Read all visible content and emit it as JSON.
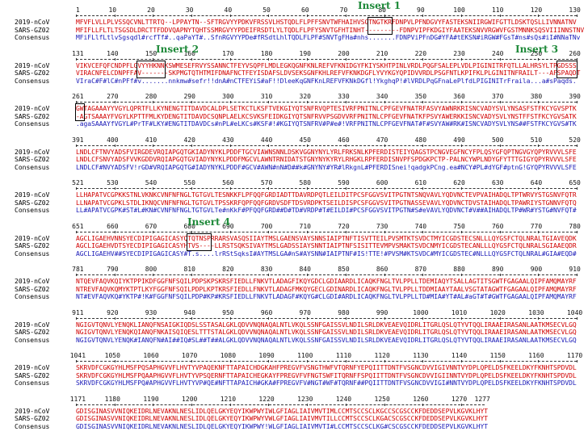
{
  "row_labels": [
    "2019-nCoV",
    "SARS-GZ02",
    "Consensus"
  ],
  "inserts": [
    "Insert 1",
    "Insert 2",
    "Insert 3",
    "Insert 4"
  ],
  "blocks": [
    {
      "ruler": [
        "1",
        "10",
        "20",
        "30",
        "40",
        "50",
        "60",
        "70",
        "80",
        "90",
        "100",
        "110",
        "120",
        "130"
      ],
      "seqs": [
        "MFVFLVLLPLVSSQCVNLTTRTQ--LPPAYTN--SFTRGVYYPDKVFRSSVLHSTQDLFLPFFSNVTWFHAIHVSGTNGTKRFDNPVLPFNDGVYFASTEKSNIIRGWIFGTTLDSKTQSLLIVNNATNV",
        "MFIFLLFLTLTSGSDLDRCTTFDDVQAPNYTQHTSSMRGVYYPDEIFRSDTLYLTQDLFLPFYSNVTGFHTINHT---------FDNPVIPFKDGIYFAATEKSNVVRGWVFGSTMNNKSQSVIIINNSTNV",
        "MFiFLlfLtlvSgsqdl#rcfTf#..qaPaYT#..SfnRGVYYPDe#fRSdtLhlTQDLFLPF#SNVTgFHa#nhs.......FDNPViPFnDG#YFA#tEKSN#iRGW#FGsT#ns#sQs#iI#NNaTNv"
      ],
      "inserts": [
        0
      ]
    },
    {
      "ruler": [
        "131",
        "140",
        "150",
        "160",
        "170",
        "180",
        "190",
        "200",
        "210",
        "220",
        "230",
        "240",
        "250",
        "260"
      ],
      "seqs": [
        "VIKVCEFQFCNDPFLGVYYHKNNKSWMESEFRVYSSANNCTFEYVSQPFLMDLEGKQGNFKNLREFVFKNIDGYFKIYSKHTPINLVRDLPQGFSALEPLVDLPIGINITRFQTLLALHRSYLTPGDSSS",
        "VIRACNFELCDNPFFAV-------SKPMGTQTHTMIFDNAFNCTFEYISDAFSLDVSEKSGNFKHLREFVFKNKDGFLYVYKGYQPIDVVRDLPSGFNTLKPIFKLPLGINITNFRAILT---AFSPAQDT",
        "VIraC#F#lC#nPFf#v.......nnkmw#sefr!!dnA#nCTFEYiS#aF!!DleeKqGNFKnLREFVFKNkDGfl!YkghqP!#lVRDLPqGFnaLePlfdLPIGINITrFraila...a#sPaqds."
      ],
      "inserts": [
        1,
        2
      ]
    },
    {
      "ruler": [
        "261",
        "270",
        "280",
        "290",
        "300",
        "310",
        "320",
        "330",
        "340",
        "350",
        "360",
        "370",
        "380",
        "390"
      ],
      "seqs": [
        "GWTAGAAAYYVGYLQPRTFLLKYNENGTITDAVDCALDPLSETKCTLKSFTVEKGIYQTSNFRVQPTESIVRFPNITNLCPFGEVFNATRFASVYAWNRKRISNCVADYSVLYNSASFSTFKCYGVSPTK",
        "-AGTSAAAYFVGYLKPTTFMLKYDENGTITDAVDCSQNPLAELKCSVKSFEIDKGIYQTSNFRVVPSGDVVRFPNITNLCPFGEVFNATKFPSVYAWERKKISNCVADYSVLYNSTFFSTFKCYGVSATK",
        ".agaSAAAYfVGYL#PrTF#LKY#ENGTITDAVDCs#nPL#eLKCs#KSF#!#KGIYQTSNFRV#P#e#!VRFPNITNLCPFGEVFNAT#F#SVYAW#RK#ISNCVADYSVLYNS##FSTFKCYGVS#TK"
      ],
      "inserts": [
        2
      ]
    },
    {
      "ruler": [
        "391",
        "400",
        "410",
        "420",
        "430",
        "440",
        "450",
        "460",
        "470",
        "480",
        "490",
        "500",
        "510",
        "520"
      ],
      "seqs": [
        "LNDLCFTNVYADSFVIRGDEVRQIAPGQTGKIADYNYKLPDDFTGCVIAWNSNNLDSKVGGNYNYLYRLFRKSNLKPFERDISTEIYQAGSTPCNGVEGFNCYFPLQSYGFQPTNGVGYQPYRVVVLSFE",
        "LNDLCFSNVYADSFVVKGDDVRQIAPGQTGVIADYNYKLPDDFMGCVLAWNTRNIDATSTGNYNYKYRYLRHGKLRPFERDISNVPFSPDGKPCTP-PALNCYWPLNDYGFYTTTGIGYQPYRVVVLSFE",
        "LNDLCF#NVYADSFV!rGD#VRQIAPGQTG#IADYNYKLPDDF#GCV#AWN#nN#D##k#GNYNY#YR#lRkgnL#PFERDISnei!qadgkPCng.ea#NCY#PL#dYGF#ptnG!GYQPYRVVVLSFE"
      ],
      "inserts": []
    },
    {
      "ruler": [
        "521",
        "530",
        "540",
        "550",
        "560",
        "570",
        "580",
        "590",
        "600",
        "610",
        "620",
        "630",
        "640",
        "650"
      ],
      "seqs": [
        "LLHAPATVCGPKKSTNLVKNKCVNFNFNGLTGTGVLTESNKKFLPFQQFGRDIADTTDAVRDPQTLEILDITPCSFGGVSVITPGTNTSNQVAVLYQDVNCTEVPVAIHADQLTPTWRVYSTGSNVFQTR",
        "LLNAPATVCGPKLSTDLIKNQCVNFNFNGLTGTGVLTPSSKRFQPFQQFGRDVSDFTDSVRDPKTSEILDISPCSFGGVSVITPGTNASSEVAVLYQDVNCTDVSTAIHADQLTPAWRIYSTGNNVFQTQ",
        "LL#APATVCGPK#ST#L#KN#CVNFNFNGLTGTGVLTe#nKkF#PFQQFGRD##D#TD#VRDP#T#EILDI#PCSFGGVSVITPGTN#S#eVAVLYQDVNCT#V##AIHADQLTP#WR#YSTG#NVFQT#"
      ],
      "inserts": []
    },
    {
      "ruler": [
        "651",
        "660",
        "670",
        "680",
        "690",
        "700",
        "710",
        "720",
        "730",
        "740",
        "750",
        "760",
        "770",
        "780"
      ],
      "seqs": [
        "AGCLIGAEHVNNSYECDIPIGAGICASYQTQTNSPRRARSVASQSIIAYTMSLGAENSVAYSNNSIAIPTNFTISVTTEILPVSMTKTSVDCTMYICGDSTECSNLLLQYGSFCTQLNRALTGIAVEQDK",
        "AGCLIGAEHVDTSYECDIPIGAGICASYHTVS----LLRSTSQKSIVAYTMSLGADSSIAYSNNTIAIPTNFSISITTEVMPVSMAKTSVDCNMYICGDSTECANLLLQYGSFCTQLNRALSGIAAEQDR",
        "AGCLIGAEHV##SYECDIPIGAGICASY#T.s....lrRStSqksI#AYTMSLGA#nS#AYSNN#IAIPTNF#IS!TTE!#PVSM#KTSVDC#MYICGDSTEC#NLLLQYGSFCTQLNRAL#GIA#EQD#"
      ],
      "inserts": [
        3
      ]
    },
    {
      "ruler": [
        "781",
        "790",
        "800",
        "810",
        "820",
        "830",
        "840",
        "850",
        "860",
        "870",
        "880",
        "890",
        "900",
        "910"
      ],
      "seqs": [
        "NTQEVFAQVKQIYKTPPIKDFGGFNFSQILPDPSKPSKRSFIEDLLFNKVTLADAGFIKQYGDCLGDIAARDLICAQKFNGLTVLPPLLTDEMIAQYTSALLAGTITSGWTFGAGAALQIPFAMQMAYRF",
        "NTREVFAQVKQMYKTPTLKYFGGFNFSQILPDPLKPTKRSFIEDLLFNKVTLADAGFMKQYGECLGDINARDLICAQKFNGLTVLPPLLTDDMIAAYTAALVSGTATAGWTFGAGAALQIPFAMQMAYRF",
        "NT#EVFAQVKQ#YKTP#!K#FGGFNFSQILPDP#KP#KRSFIEDLLFNKVTLADAGF#KQYG#CLGDI#ARDLICAQKFNGLTVLPPLLTD#MIA#YT#AL#aGT#T#GWTFGAGAALQIPFAMQMAYRF"
      ],
      "inserts": []
    },
    {
      "ruler": [
        "911",
        "920",
        "930",
        "940",
        "950",
        "960",
        "970",
        "980",
        "990",
        "1000",
        "1010",
        "1020",
        "1030",
        "1040"
      ],
      "seqs": [
        "NGIGVTQNVLYENQKLIANQFNSAIGKIQDSLSSTASALGKLQDVVNQNAQALNTLVKQLSSNFGAISSVLNDILSRLDKVEAEVQIDRLITGRLQSLQTYVTQQLIRAAEIRASANLAATKMSECVLGQ",
        "NGIGVTQNVLYENQKQIANQFNKAISQIQESLTTTSTALGKLQDVVNQNAQALNTLVKQLSSNFGAISSVLNDILSRLDKVEAEVQIDRLITGRLQSLQTYVTQQLIRAAEIRASANLAATKMSECVLGQ",
        "NGIGVTQNVLYENQK#IANQFN#AI##IQ#SL##T##ALGKLQDVVNQNAQALNTLVKQLSSNFGAISSVLNDILSRLDKVEAEVQIDRLITGRLQSLQTYVTQQLIRAAEIRASANLAATKMSECVLGQ"
      ],
      "inserts": []
    },
    {
      "ruler": [
        "1041",
        "1050",
        "1060",
        "1070",
        "1080",
        "1090",
        "1100",
        "1110",
        "1120",
        "1130",
        "1140",
        "1150",
        "1160",
        "1170"
      ],
      "seqs": [
        "SKRVDFCGKGYHLMSFPQSAPHGVVFLHVTYVPAQEKNFTTAPAICHDGKAHFPREGVFVSNGTHWFVTQRNFYEPQIITTDNTFVSGNCDVVIGIVNNTVYDPLQPELDSFKEELDKYFKNHTSPDVDL",
        "SKRVDFCGKGYHLMSFPQAAPHGVVFLHVTYVPSQERNFTTAPAICHEGKAYFPREGVFVFNGTSWFITQRNFFSPQIITTDNTFVSGNCDVVIGIINNTVYDPLQPELDSFKEELDKYFKNHTSPDVDL",
        "SKRVDFCGKGYHLMSFPQ#APHGVVFLHVTYVP#QE#NFTTAPAICH#GKA#FPREGVFV#NGT#WF#TQRNF##PQIITTDNTFVSGNCDVVIGI#NNTVYDPLQPELDSFKEELDKYFKNHTSPDVDL"
      ],
      "inserts": []
    },
    {
      "ruler": [
        "1171",
        "1180",
        "1190",
        "1200",
        "1210",
        "1220",
        "1230",
        "1240",
        "1250",
        "1260",
        "1270",
        "1277"
      ],
      "seqs": [
        "GDISGINASVVNIQKEIDRLNEVAKNLNESLIDLQELGKYEQYIKWPWYIWLGFIAGLIAIVMVTIMLCCMTSCCSCLKGCCSCGSCCKFDEDDSEPVLKGVKLHYT",
        "GDISGINASVVNIQKEIDRLNEVAKNLNESLIDLQELGKYEQYIKWPWYVWLGFIAGLIAIVMVTILLCCMTSCCSCLKGACSCGSCCKFDEDDSEPVLKGVKLHYT",
        "GDISGINASVVNIQKEIDRLNEVAKNLNESLIDLQELGKYEQYIKWPWY!WLGFIAGLIAIVMVTI#LCCMTSCCSCLKG#CSCGSCCKFDEDDSEPVLKGVKLHYT"
      ],
      "inserts": []
    }
  ]
}
